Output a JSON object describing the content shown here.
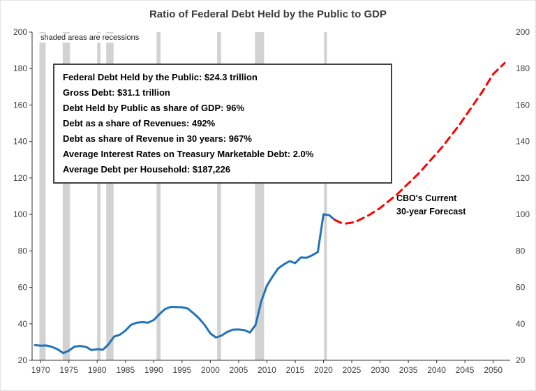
{
  "title": "Ratio of Federal Debt Held by the Public to GDP",
  "note": "shaded areas are recessions",
  "infobox": {
    "lines": [
      "Federal Debt Held by the Public: $24.3 trillion",
      "Gross Debt: $31.1 trillion",
      "Debt Held by Public as share of GDP: 96%",
      "Debt as a share of Revenues: 492%",
      "Debt as share of Revenue in 30 years: 967%",
      "Average Interest Rates on Treasury Marketable Debt:  2.0%",
      "Average Debt per Household: $187,226"
    ]
  },
  "forecast_label": {
    "line1": "CBO's Current",
    "line2": "30-year Forecast"
  },
  "chart_data": {
    "type": "line",
    "title": "Ratio of Federal Debt Held by the Public to GDP",
    "xlabel": "",
    "ylabel": "",
    "xlim": [
      1968.5,
      2053
    ],
    "ylim": [
      20,
      200
    ],
    "grid": false,
    "legend": "none",
    "xticks": [
      1970,
      1975,
      1980,
      1985,
      1990,
      1995,
      2000,
      2005,
      2010,
      2015,
      2020,
      2025,
      2030,
      2035,
      2040,
      2045,
      2050
    ],
    "yticks": [
      20,
      40,
      60,
      80,
      100,
      120,
      140,
      160,
      180,
      200
    ],
    "colors": {
      "axis": "#333333",
      "recession": "#d2d2d2",
      "historical": "#2273b8",
      "forecast": "#ff0000"
    },
    "recessions": [
      [
        1969.8,
        1970.9
      ],
      [
        1973.9,
        1975.2
      ],
      [
        1980.0,
        1980.6
      ],
      [
        1981.6,
        1982.9
      ],
      [
        1990.5,
        1991.2
      ],
      [
        2001.2,
        2001.9
      ],
      [
        2007.9,
        2009.5
      ],
      [
        2020.1,
        2020.6
      ]
    ],
    "series": [
      {
        "name": "historical",
        "color": "#2273b8",
        "style": "solid",
        "x": [
          1969,
          1970,
          1971,
          1972,
          1973,
          1974,
          1975,
          1976,
          1977,
          1978,
          1979,
          1980,
          1981,
          1982,
          1983,
          1984,
          1985,
          1986,
          1987,
          1988,
          1989,
          1990,
          1991,
          1992,
          1993,
          1994,
          1995,
          1996,
          1997,
          1998,
          1999,
          2000,
          2001,
          2002,
          2003,
          2004,
          2005,
          2006,
          2007,
          2008,
          2009,
          2010,
          2011,
          2012,
          2013,
          2014,
          2015,
          2016,
          2017,
          2018,
          2019,
          2020,
          2021,
          2022
        ],
        "y": [
          28.3,
          28.0,
          28.1,
          27.4,
          26.0,
          23.9,
          25.3,
          27.5,
          27.8,
          27.4,
          25.6,
          26.1,
          25.8,
          28.7,
          33.0,
          34.0,
          36.3,
          39.5,
          40.6,
          40.9,
          40.6,
          42.1,
          45.3,
          48.1,
          49.3,
          49.2,
          49.1,
          48.4,
          45.9,
          43.0,
          39.4,
          34.7,
          32.5,
          33.6,
          35.6,
          36.8,
          36.9,
          36.6,
          35.2,
          39.4,
          52.3,
          60.9,
          65.9,
          70.4,
          72.6,
          74.4,
          73.3,
          76.4,
          76.2,
          77.6,
          79.4,
          100.1,
          99.6,
          97.0
        ]
      },
      {
        "name": "forecast",
        "color": "#ff0000",
        "style": "dashed",
        "dash": "10 7",
        "x": [
          2022,
          2023,
          2024,
          2025,
          2026,
          2027,
          2028,
          2029,
          2030,
          2031,
          2032,
          2033,
          2034,
          2035,
          2036,
          2037,
          2038,
          2039,
          2040,
          2041,
          2042,
          2043,
          2044,
          2045,
          2046,
          2047,
          2048,
          2049,
          2050,
          2051,
          2052
        ],
        "y": [
          97.0,
          95.5,
          95.0,
          95.5,
          96.5,
          98.0,
          99.5,
          101.5,
          103.5,
          106.0,
          108.5,
          111.0,
          114.0,
          117.0,
          120.0,
          123.0,
          126.5,
          130.0,
          133.5,
          137.0,
          141.0,
          145.0,
          149.0,
          153.5,
          158.0,
          162.5,
          167.0,
          172.0,
          177.0,
          180.0,
          183.0
        ]
      }
    ]
  }
}
